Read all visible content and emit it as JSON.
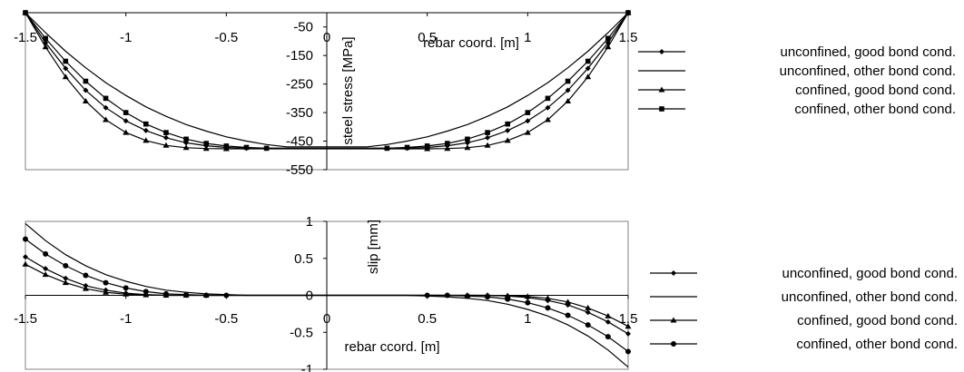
{
  "chart_data": [
    {
      "type": "line",
      "title": "",
      "xlabel": "rebar coord. [m]",
      "ylabel": "steel stress [MPa]",
      "xlim": [
        -1.5,
        1.5
      ],
      "ylim": [
        -550,
        0
      ],
      "x_ticks": [
        -1.5,
        -1,
        -0.5,
        0,
        0.5,
        1,
        1.5
      ],
      "y_ticks": [
        -50,
        -150,
        -250,
        -350,
        -450,
        -550
      ],
      "x_tick_labels": [
        "-1.5",
        "-1",
        "-0.5",
        "0",
        "0.5",
        "1",
        "1.5"
      ],
      "y_tick_labels": [
        "-50",
        "-150",
        "-250",
        "-350",
        "-450",
        "-550"
      ],
      "grid": false,
      "legend_position": "right",
      "series": [
        {
          "name": "unconfined, good bond cond.",
          "marker": "diamond",
          "x": [
            -1.5,
            -1.4,
            -1.3,
            -1.2,
            -1.1,
            -1.0,
            -0.9,
            -0.8,
            -0.7,
            -0.6,
            -0.5,
            -0.4,
            0.4,
            0.5,
            0.6,
            0.7,
            0.8,
            0.9,
            1.0,
            1.1,
            1.2,
            1.3,
            1.4,
            1.5
          ],
          "y": [
            0,
            -105,
            -195,
            -272,
            -333,
            -379,
            -413,
            -438,
            -456,
            -466,
            -472,
            -475,
            -475,
            -472,
            -466,
            -456,
            -438,
            -413,
            -379,
            -333,
            -272,
            -195,
            -105,
            0
          ]
        },
        {
          "name": "unconfined, other bond cond.",
          "marker": "none",
          "x": [
            -1.5,
            -1.4,
            -1.3,
            -1.2,
            -1.1,
            -1.0,
            -0.9,
            -0.8,
            -0.7,
            -0.6,
            -0.5,
            -0.4,
            -0.3,
            -0.2,
            0.2,
            0.3,
            0.4,
            0.5,
            0.6,
            0.7,
            0.8,
            0.9,
            1.0,
            1.1,
            1.2,
            1.3,
            1.4,
            1.5
          ],
          "y": [
            0,
            -70,
            -135,
            -193,
            -245,
            -290,
            -330,
            -363,
            -392,
            -415,
            -435,
            -450,
            -462,
            -470,
            -470,
            -462,
            -450,
            -435,
            -415,
            -392,
            -363,
            -330,
            -290,
            -245,
            -193,
            -135,
            -70,
            0
          ]
        },
        {
          "name": "confined, good bond cond.",
          "marker": "triangle",
          "x": [
            -1.5,
            -1.4,
            -1.3,
            -1.2,
            -1.1,
            -1.0,
            -0.9,
            -0.8,
            -0.7,
            -0.6,
            -0.5,
            0.5,
            0.6,
            0.7,
            0.8,
            0.9,
            1.0,
            1.1,
            1.2,
            1.3,
            1.4,
            1.5
          ],
          "y": [
            0,
            -120,
            -225,
            -310,
            -375,
            -420,
            -448,
            -465,
            -473,
            -476,
            -477,
            -477,
            -476,
            -473,
            -465,
            -448,
            -420,
            -375,
            -310,
            -225,
            -120,
            0
          ]
        },
        {
          "name": "confined, other bond cond.",
          "marker": "square",
          "x": [
            -1.5,
            -1.4,
            -1.3,
            -1.2,
            -1.1,
            -1.0,
            -0.9,
            -0.8,
            -0.7,
            -0.6,
            -0.5,
            -0.4,
            -0.3,
            0.3,
            0.4,
            0.5,
            0.6,
            0.7,
            0.8,
            0.9,
            1.0,
            1.1,
            1.2,
            1.3,
            1.4,
            1.5
          ],
          "y": [
            0,
            -90,
            -170,
            -240,
            -300,
            -350,
            -390,
            -420,
            -443,
            -458,
            -467,
            -472,
            -475,
            -475,
            -472,
            -467,
            -458,
            -443,
            -420,
            -390,
            -350,
            -300,
            -240,
            -170,
            -90,
            0
          ]
        }
      ]
    },
    {
      "type": "line",
      "title": "",
      "xlabel": "rebar ccord. [m]",
      "ylabel": "slip [mm]",
      "xlim": [
        -1.5,
        1.5
      ],
      "ylim": [
        -1,
        1
      ],
      "x_ticks": [
        -1.5,
        -1,
        -0.5,
        0,
        0.5,
        1,
        1.5
      ],
      "y_ticks": [
        1,
        0.5,
        0,
        -0.5,
        -1
      ],
      "x_tick_labels": [
        "-1.5",
        "-1",
        "-0.5",
        "0",
        "0.5",
        "1",
        "1.5"
      ],
      "y_tick_labels": [
        "1",
        "0.5",
        "0",
        "-0.5",
        "-1"
      ],
      "grid": false,
      "legend_position": "right",
      "series": [
        {
          "name": "unconfined, good bond cond.",
          "marker": "diamond",
          "x": [
            -1.5,
            -1.4,
            -1.3,
            -1.2,
            -1.1,
            -1.0,
            -0.9,
            -0.8,
            -0.7,
            -0.6,
            -0.5,
            0.6,
            0.7,
            0.8,
            0.9,
            1.0,
            1.1,
            1.2,
            1.3,
            1.4,
            1.5
          ],
          "y": [
            0.52,
            0.36,
            0.23,
            0.13,
            0.07,
            0.03,
            0.01,
            0.0,
            0.0,
            0.0,
            0.0,
            0.0,
            0.0,
            0.0,
            -0.01,
            -0.03,
            -0.07,
            -0.13,
            -0.23,
            -0.36,
            -0.52
          ]
        },
        {
          "name": "unconfined, other bond cond.",
          "marker": "none",
          "x": [
            -1.5,
            -1.4,
            -1.3,
            -1.2,
            -1.1,
            -1.0,
            -0.9,
            -0.8,
            -0.7,
            -0.6,
            -0.5,
            -0.4,
            -0.3,
            0.4,
            0.5,
            0.6,
            0.7,
            0.8,
            0.9,
            1.0,
            1.1,
            1.2,
            1.3,
            1.4,
            1.5
          ],
          "y": [
            0.97,
            0.74,
            0.55,
            0.4,
            0.28,
            0.19,
            0.12,
            0.07,
            0.04,
            0.02,
            0.01,
            0.0,
            0.0,
            0.0,
            -0.01,
            -0.02,
            -0.04,
            -0.07,
            -0.12,
            -0.19,
            -0.28,
            -0.4,
            -0.55,
            -0.74,
            -0.97
          ]
        },
        {
          "name": "confined, good bond cond.",
          "marker": "triangle",
          "x": [
            -1.5,
            -1.4,
            -1.3,
            -1.2,
            -1.1,
            -1.0,
            -0.9,
            -0.8,
            -0.7,
            -0.6,
            0.7,
            0.8,
            0.9,
            1.0,
            1.1,
            1.2,
            1.3,
            1.4,
            1.5
          ],
          "y": [
            0.42,
            0.28,
            0.17,
            0.09,
            0.04,
            0.015,
            0.005,
            0.0,
            0.0,
            0.0,
            0.0,
            0.0,
            -0.005,
            -0.015,
            -0.04,
            -0.09,
            -0.17,
            -0.28,
            -0.42
          ]
        },
        {
          "name": "confined, other bond cond.",
          "marker": "circle",
          "x": [
            -1.5,
            -1.4,
            -1.3,
            -1.2,
            -1.1,
            -1.0,
            -0.9,
            -0.8,
            -0.7,
            -0.6,
            -0.5,
            0.5,
            0.6,
            0.7,
            0.8,
            0.9,
            1.0,
            1.1,
            1.2,
            1.3,
            1.4,
            1.5
          ],
          "y": [
            0.76,
            0.56,
            0.4,
            0.27,
            0.17,
            0.1,
            0.05,
            0.02,
            0.01,
            0.0,
            0.0,
            0.0,
            0.0,
            -0.01,
            -0.02,
            -0.05,
            -0.1,
            -0.17,
            -0.27,
            -0.4,
            -0.56,
            -0.76
          ]
        }
      ]
    }
  ]
}
